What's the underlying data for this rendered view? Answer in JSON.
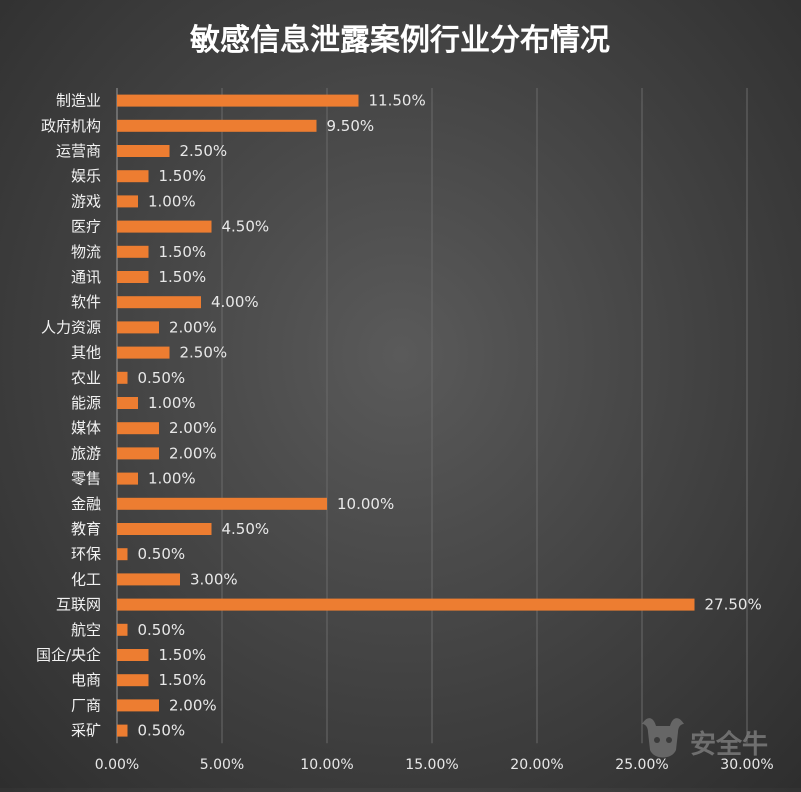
{
  "chart_data": {
    "type": "bar",
    "orientation": "horizontal",
    "title": "敏感信息泄露案例行业分布情况",
    "xlabel": "",
    "ylabel": "",
    "xlim": [
      0,
      30
    ],
    "grid": true,
    "legend": "none",
    "bar_color": "#ed7d31",
    "categories": [
      "制造业",
      "政府机构",
      "运营商",
      "娱乐",
      "游戏",
      "医疗",
      "物流",
      "通讯",
      "软件",
      "人力资源",
      "其他",
      "农业",
      "能源",
      "媒体",
      "旅游",
      "零售",
      "金融",
      "教育",
      "环保",
      "化工",
      "互联网",
      "航空",
      "国企/央企",
      "电商",
      "厂商",
      "采矿"
    ],
    "values": [
      11.5,
      9.5,
      2.5,
      1.5,
      1.0,
      4.5,
      1.5,
      1.5,
      4.0,
      2.0,
      2.5,
      0.5,
      1.0,
      2.0,
      2.0,
      1.0,
      10.0,
      4.5,
      0.5,
      3.0,
      27.5,
      0.5,
      1.5,
      1.5,
      2.0,
      0.5
    ],
    "value_labels": [
      "11.50%",
      "9.50%",
      "2.50%",
      "1.50%",
      "1.00%",
      "4.50%",
      "1.50%",
      "1.50%",
      "4.00%",
      "2.00%",
      "2.50%",
      "0.50%",
      "1.00%",
      "2.00%",
      "2.00%",
      "1.00%",
      "10.00%",
      "4.50%",
      "0.50%",
      "3.00%",
      "27.50%",
      "0.50%",
      "1.50%",
      "1.50%",
      "2.00%",
      "0.50%"
    ],
    "x_ticks": [
      0,
      5,
      10,
      15,
      20,
      25,
      30
    ],
    "x_tick_labels": [
      "0.00%",
      "5.00%",
      "10.00%",
      "15.00%",
      "20.00%",
      "25.00%",
      "30.00%"
    ]
  },
  "watermark": {
    "text": "安全牛",
    "icon": "bull-logo-icon"
  }
}
